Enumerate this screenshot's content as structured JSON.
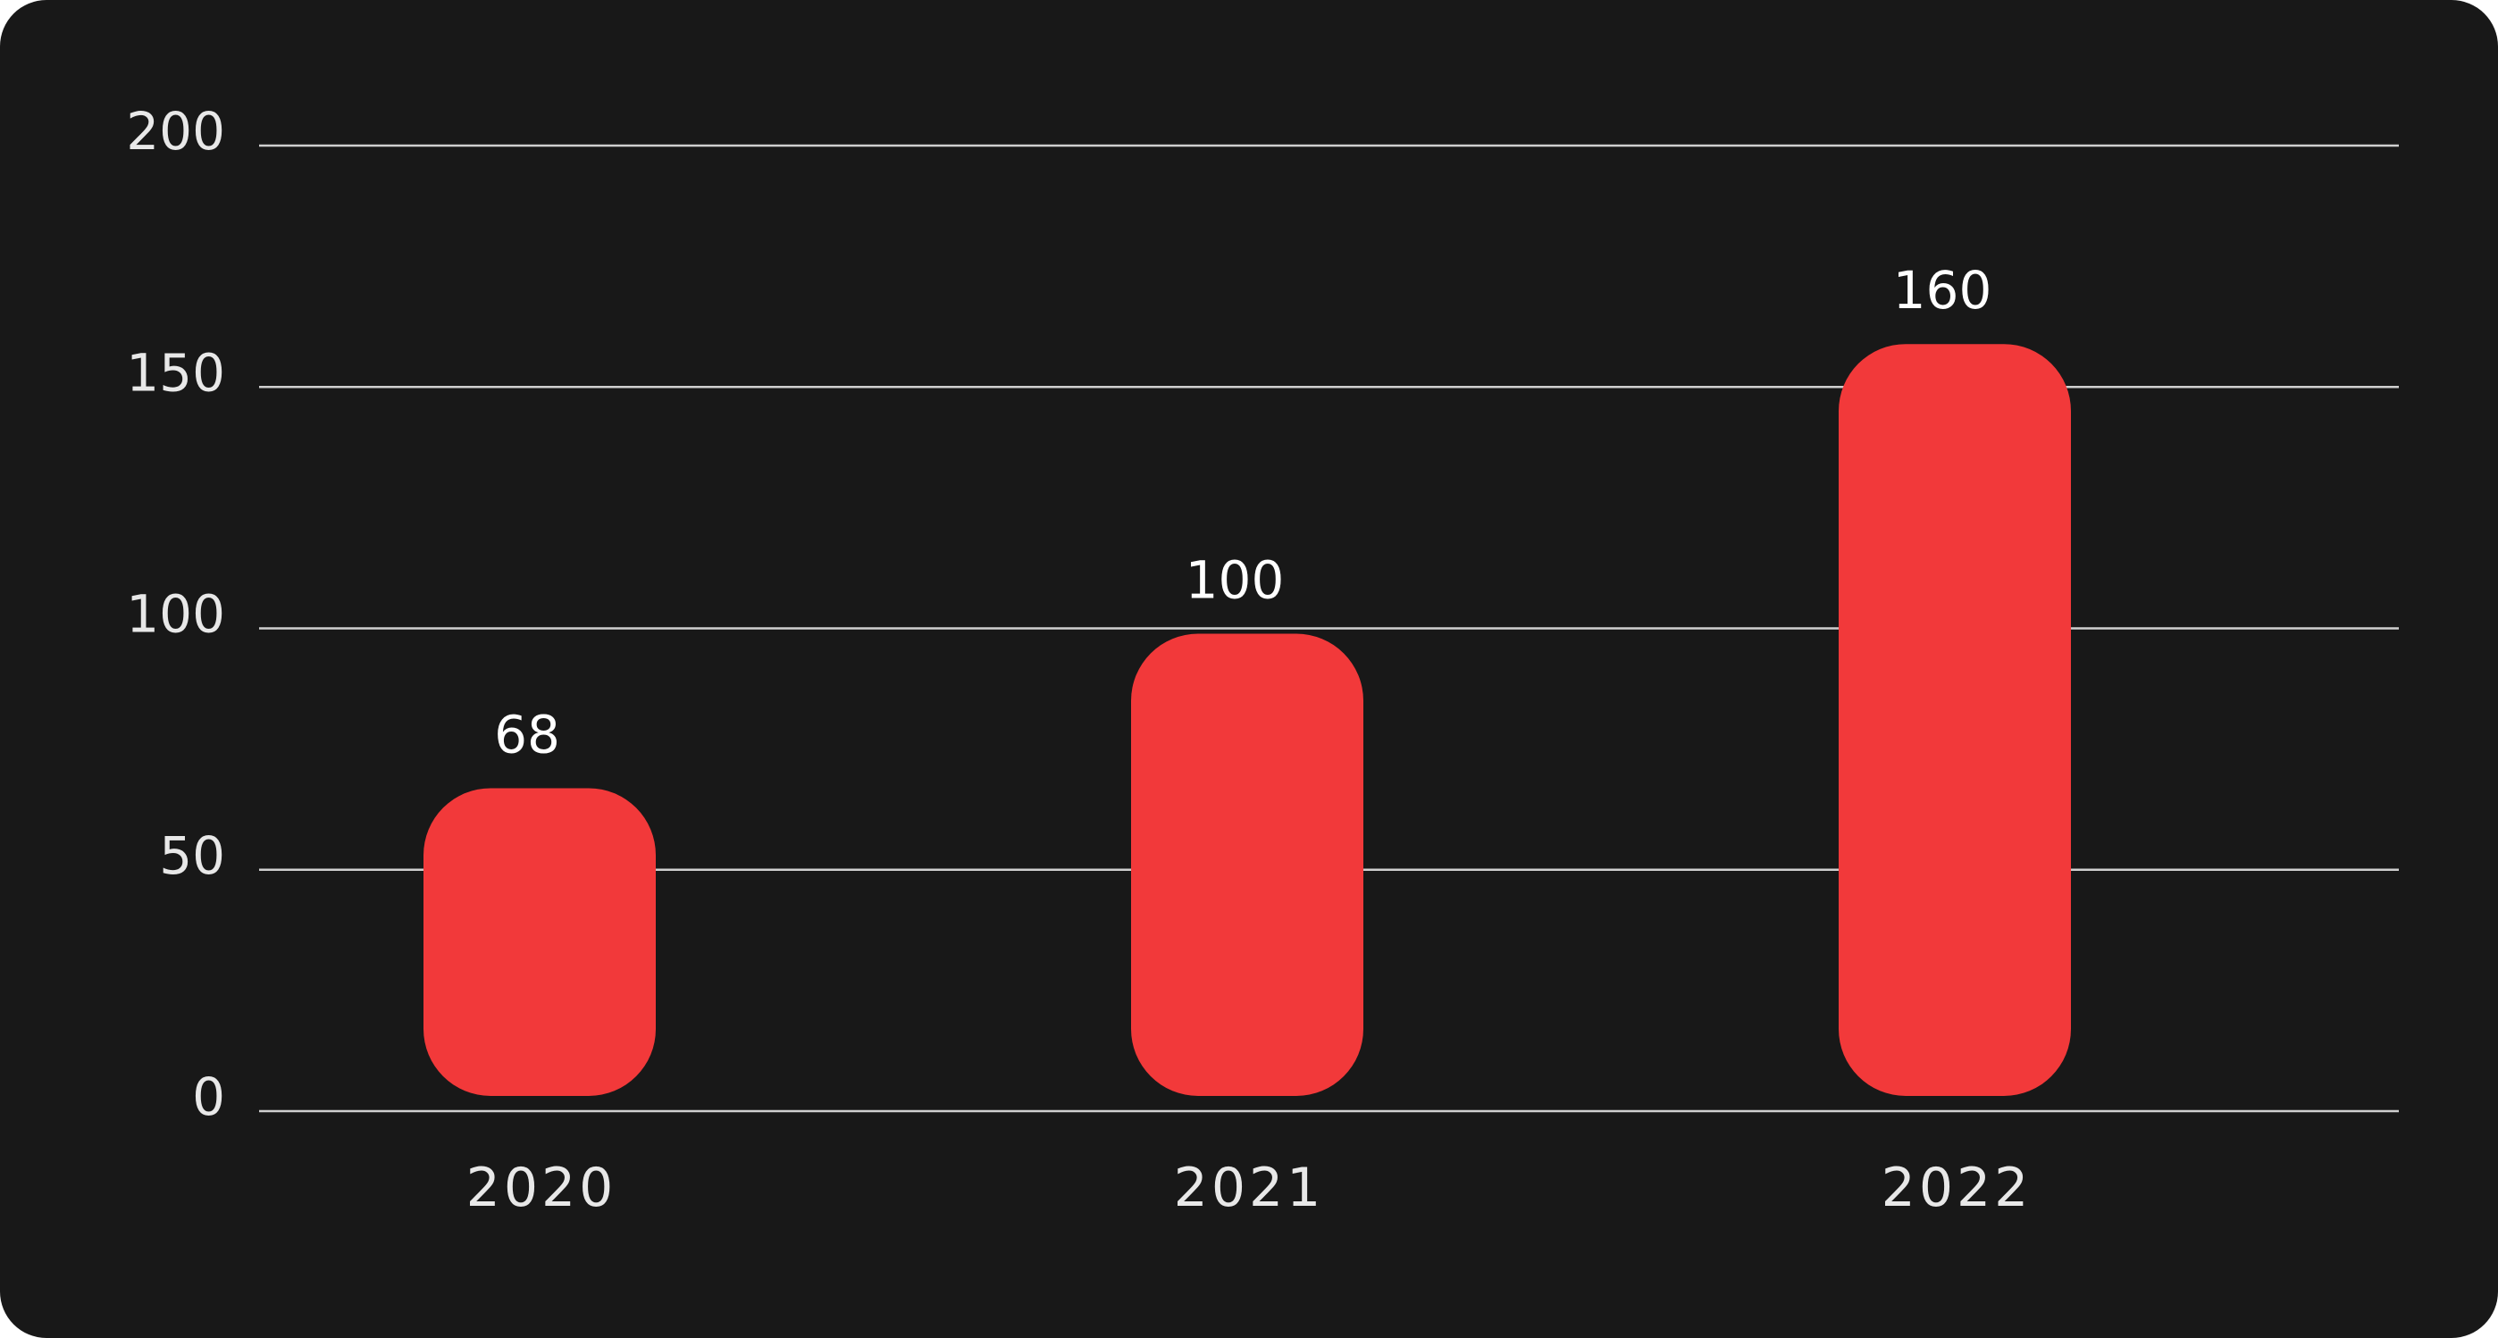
{
  "colors": {
    "background": "#181818",
    "bar": "#f2393a",
    "grid": "#cfcfcf",
    "text": "#e8e8e8"
  },
  "chart_data": {
    "type": "bar",
    "categories": [
      "2020",
      "2021",
      "2022"
    ],
    "values": [
      68,
      100,
      160
    ],
    "data_labels": [
      "68",
      "100",
      "160"
    ],
    "ylim": [
      0,
      200
    ],
    "yticks": [
      0,
      50,
      100,
      150,
      200
    ],
    "ytick_labels": [
      "0",
      "50",
      "100",
      "150",
      "200"
    ],
    "grid": true,
    "legend": "none"
  }
}
